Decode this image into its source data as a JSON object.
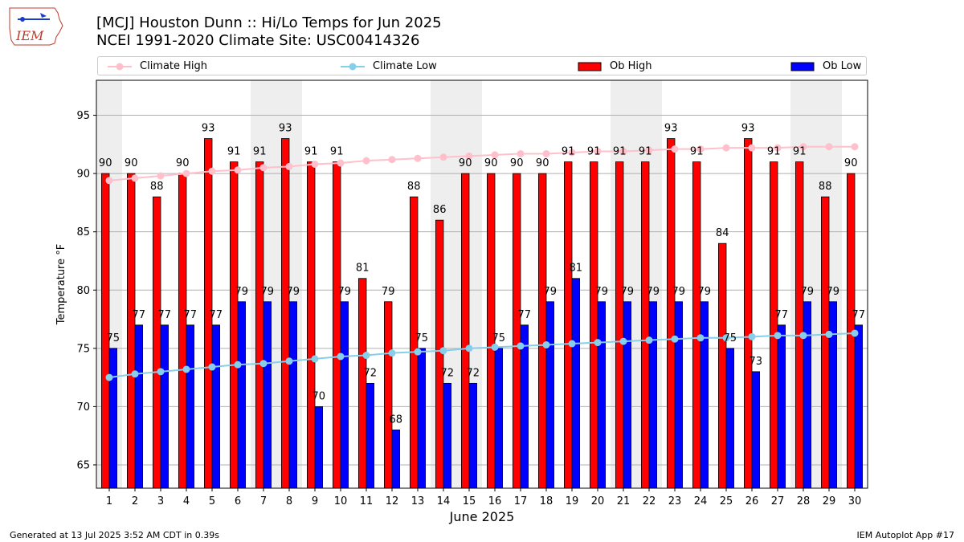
{
  "header": {
    "title_line1": "[MCJ] Houston Dunn :: Hi/Lo Temps for Jun 2025",
    "title_line2": "NCEI 1991-2020 Climate Site: USC00414326",
    "logo_text": "IEM"
  },
  "legend": {
    "climate_high": "Climate High",
    "climate_low": "Climate Low",
    "ob_high": "Ob High",
    "ob_low": "Ob Low"
  },
  "footer": {
    "generated": "Generated at 13 Jul 2025 3:52 AM CDT in 0.39s",
    "app": "IEM Autoplot App #17"
  },
  "colors": {
    "ob_high": "#ff0000",
    "ob_low": "#0000ff",
    "climate_high": "#ffc0cb",
    "climate_low": "#87ceeb",
    "weekend_shade": "#eeeeee",
    "grid": "#b0b0b0"
  },
  "chart_data": {
    "type": "bar",
    "xlabel": "June 2025",
    "ylabel": "Temperature °F",
    "ylim": [
      63,
      98
    ],
    "yticks": [
      65,
      70,
      75,
      80,
      85,
      90,
      95
    ],
    "grid": true,
    "legend_position": "top",
    "categories": [
      1,
      2,
      3,
      4,
      5,
      6,
      7,
      8,
      9,
      10,
      11,
      12,
      13,
      14,
      15,
      16,
      17,
      18,
      19,
      20,
      21,
      22,
      23,
      24,
      25,
      26,
      27,
      28,
      29,
      30
    ],
    "shaded_days": [
      1,
      7,
      8,
      14,
      15,
      21,
      22,
      28,
      29
    ],
    "series": [
      {
        "name": "Ob High",
        "type": "bar",
        "values": [
          90,
          90,
          88,
          90,
          93,
          91,
          91,
          93,
          91,
          91,
          81,
          79,
          88,
          86,
          90,
          90,
          90,
          90,
          91,
          91,
          91,
          91,
          93,
          91,
          84,
          93,
          91,
          91,
          88,
          90
        ]
      },
      {
        "name": "Ob Low",
        "type": "bar",
        "values": [
          75,
          77,
          77,
          77,
          77,
          79,
          79,
          79,
          70,
          79,
          72,
          68,
          75,
          72,
          72,
          75,
          77,
          79,
          81,
          79,
          79,
          79,
          79,
          79,
          75,
          73,
          77,
          79,
          79,
          77
        ]
      },
      {
        "name": "Climate High",
        "type": "line",
        "values": [
          89.4,
          89.6,
          89.8,
          90.0,
          90.2,
          90.3,
          90.5,
          90.6,
          90.8,
          90.9,
          91.1,
          91.2,
          91.3,
          91.4,
          91.5,
          91.6,
          91.7,
          91.7,
          91.8,
          91.9,
          91.9,
          92.0,
          92.1,
          92.1,
          92.2,
          92.2,
          92.2,
          92.3,
          92.3,
          92.3
        ]
      },
      {
        "name": "Climate Low",
        "type": "line",
        "values": [
          72.5,
          72.8,
          73.0,
          73.2,
          73.4,
          73.6,
          73.7,
          73.9,
          74.1,
          74.3,
          74.4,
          74.6,
          74.7,
          74.8,
          75.0,
          75.1,
          75.2,
          75.3,
          75.4,
          75.5,
          75.6,
          75.7,
          75.8,
          75.9,
          75.9,
          76.0,
          76.1,
          76.1,
          76.2,
          76.3
        ]
      }
    ]
  }
}
